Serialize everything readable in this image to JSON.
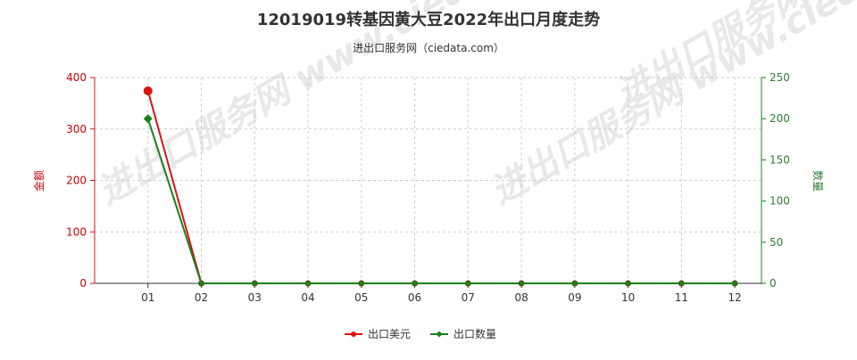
{
  "chart_data": {
    "type": "line",
    "title": "12019019转基因黄大豆2022年出口月度走势",
    "subtitle": "进出口服务网（ciedata.com）",
    "watermark": "进出口服务网 www.ciedata.com",
    "categories": [
      "01",
      "02",
      "03",
      "04",
      "05",
      "06",
      "07",
      "08",
      "09",
      "10",
      "11",
      "12"
    ],
    "y_left": {
      "label": "金额",
      "ticks": [
        "0",
        "100",
        "200",
        "300",
        "400"
      ],
      "ylim": [
        0,
        400
      ],
      "color": "#dd1111"
    },
    "y_right": {
      "label": "数量",
      "ticks": [
        "0",
        "50",
        "100",
        "150",
        "200",
        "250"
      ],
      "ylim": [
        0,
        250
      ],
      "color": "#1a7f1a"
    },
    "series": [
      {
        "name": "出口美元",
        "axis": "left",
        "color": "#dd1111",
        "marker": "circle",
        "values": [
          374,
          0,
          0,
          0,
          0,
          0,
          0,
          0,
          0,
          0,
          0,
          0
        ]
      },
      {
        "name": "出口数量",
        "axis": "right",
        "color": "#1a7f1a",
        "marker": "diamond",
        "values": [
          200,
          0,
          0,
          0,
          0,
          0,
          0,
          0,
          0,
          0,
          0,
          0
        ]
      }
    ],
    "grid": true,
    "legend_position": "bottom-center"
  }
}
